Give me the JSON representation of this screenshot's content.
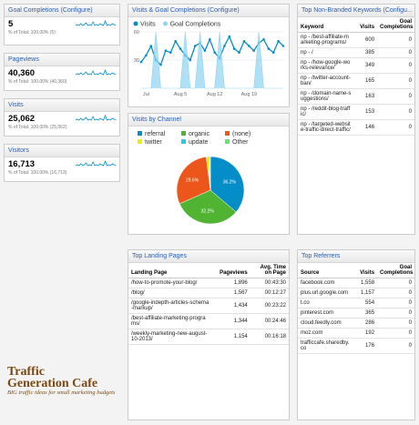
{
  "widgets": [
    {
      "title": "Goal Completions (Configure)",
      "value": "5",
      "total": "% of Total: 100.00% (5)"
    },
    {
      "title": "Pageviews",
      "value": "40,360",
      "total": "% of Total: 100.00% (40,360)"
    },
    {
      "title": "Visits",
      "value": "25,062",
      "total": "% of Total: 100.00% (25,062)"
    },
    {
      "title": "Visitors",
      "value": "16,713",
      "total": "% of Total: 100.00% (16,713)"
    }
  ],
  "chart_data": [
    {
      "type": "line",
      "title": "Visits & Goal Completions (Configure)",
      "categories": [
        null,
        "Jul",
        null,
        null,
        null,
        null,
        null,
        null,
        "Aug 5",
        null,
        null,
        null,
        null,
        null,
        null,
        "Aug 12",
        null,
        null,
        null,
        null,
        null,
        null,
        "Aug 19",
        null,
        null,
        null,
        null,
        null,
        null,
        null
      ],
      "series": [
        {
          "name": "Visits",
          "color": "#058dc7",
          "values": [
            28,
            35,
            45,
            30,
            25,
            40,
            38,
            50,
            42,
            35,
            30,
            45,
            48,
            40,
            52,
            38,
            32,
            45,
            55,
            42,
            38,
            50,
            45,
            40,
            48,
            52,
            42,
            38,
            50,
            45
          ]
        },
        {
          "name": "Goal Completions",
          "color": "#8fd3f2",
          "axis": "y2",
          "values": [
            0,
            0,
            0,
            1,
            0,
            0,
            0,
            0,
            0,
            1,
            0,
            0,
            1,
            0,
            0,
            0,
            1,
            0,
            0,
            0,
            0,
            0,
            0,
            0,
            1,
            0,
            0,
            0,
            0,
            0
          ]
        }
      ],
      "ylim": [
        0,
        60
      ],
      "yticks": [
        30,
        60
      ],
      "y2lim": [
        0,
        1
      ],
      "grid": true
    },
    {
      "type": "pie",
      "title": "Visits by Channel",
      "categories": [
        "referral",
        "organic",
        "(none)",
        "twitter",
        "update",
        "Other"
      ],
      "values": [
        36.2,
        32.2,
        29.6,
        1.2,
        0.5,
        0.3
      ],
      "value_labels": [
        "36.2%",
        "32.2%",
        "29.6%",
        null,
        null,
        null
      ],
      "colors": [
        "#058dc7",
        "#50b432",
        "#ed561b",
        "#edef00",
        "#24cbe5",
        "#64e572"
      ]
    }
  ],
  "landing_pages": {
    "title": "Top Landing Pages",
    "columns": [
      "Landing Page",
      "Pageviews",
      "Avg. Time on Page"
    ],
    "rows": [
      [
        "/how-to-promote-your-blog/",
        "1,896",
        "00:43:30"
      ],
      [
        "/blog/",
        "1,567",
        "00:12:27"
      ],
      [
        "/google-indepth-articles-schema-markup/",
        "1,434",
        "00:23:22"
      ],
      [
        "/best-affiliate-marketing-programs/",
        "1,344",
        "00:24:46"
      ],
      [
        "/weekly-marketing-new-august-10-2013/",
        "1,154",
        "00:16:18"
      ]
    ]
  },
  "keywords": {
    "title": "Top Non-Branded Keywords (Configu...",
    "columns": [
      "Keyword",
      "Visits",
      "Goal Completions"
    ],
    "rows": [
      [
        "np - /best-affiliate-marketing-programs/",
        "600",
        "0"
      ],
      [
        "np - /",
        "385",
        "0"
      ],
      [
        "np - /how-google-works-relevance/",
        "349",
        "0"
      ],
      [
        "np - /twitter-account-ban/",
        "165",
        "0"
      ],
      [
        "np - /domain-name-suggestions/",
        "163",
        "0"
      ],
      [
        "np - /reddit-blog-traffic/",
        "153",
        "0"
      ],
      [
        "np - /targeted-website-traffic-direct-traffic/",
        "146",
        "0"
      ]
    ]
  },
  "referrers": {
    "title": "Top Referrers",
    "columns": [
      "Source",
      "Visits",
      "Goal Completions"
    ],
    "rows": [
      [
        "facebook.com",
        "1,558",
        "0"
      ],
      [
        "plus.url.google.com",
        "1,157",
        "0"
      ],
      [
        "t.co",
        "554",
        "0"
      ],
      [
        "pinterest.com",
        "365",
        "0"
      ],
      [
        "cloud.feedly.com",
        "286",
        "0"
      ],
      [
        "moz.com",
        "192",
        "0"
      ],
      [
        "trafficcafe.sharedby.co",
        "176",
        "0"
      ]
    ]
  },
  "logo": {
    "name_lines": [
      "Traffic",
      "Generation Cafe"
    ],
    "tagline": "BIG traffic ideas for small marketing budgets"
  }
}
